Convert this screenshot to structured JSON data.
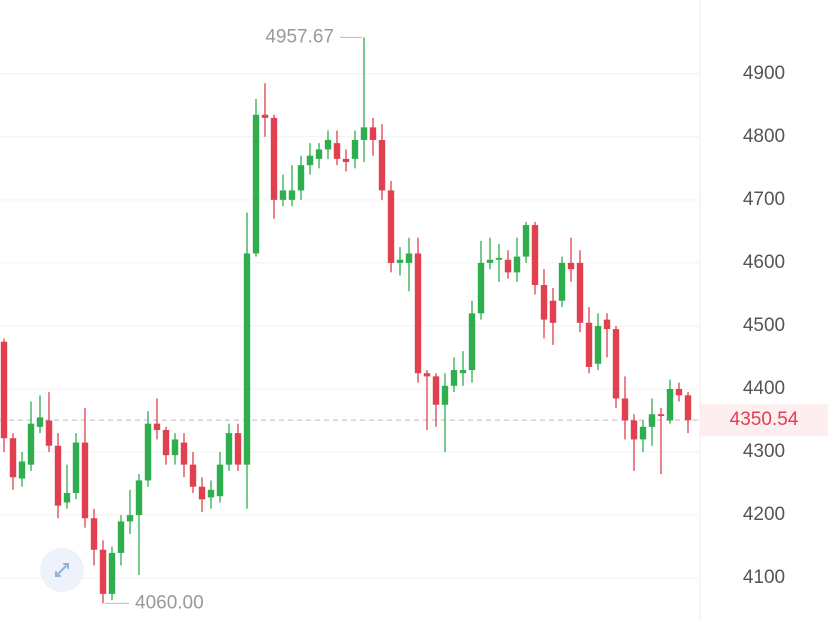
{
  "chart_data": {
    "type": "candlestick",
    "up_color": "#2fae4e",
    "down_color": "#e0404f",
    "grid": true,
    "ylim": [
      4032,
      5017
    ],
    "yticks": [
      4100,
      4200,
      4300,
      4400,
      4500,
      4600,
      4700,
      4800,
      4900
    ],
    "open": [
      4475,
      4322,
      4258,
      4280,
      4340,
      4350,
      4310,
      4220,
      4235,
      4315,
      4195,
      4145,
      4075,
      4140,
      4190,
      4200,
      4255,
      4345,
      4335,
      4295,
      4315,
      4280,
      4245,
      4228,
      4230,
      4280,
      4330,
      4280,
      4615,
      4835,
      4830,
      4700,
      4700,
      4715,
      4755,
      4765,
      4780,
      4790,
      4765,
      4765,
      4795,
      4815,
      4795,
      4715,
      4600,
      4600,
      4615,
      4425,
      4420,
      4375,
      4405,
      4425,
      4430,
      4520,
      4600,
      4605,
      4605,
      4585,
      4610,
      4660,
      4565,
      4540,
      4540,
      4600,
      4600,
      4505,
      4440,
      4510,
      4495,
      4385,
      4350,
      4320,
      4340,
      4360,
      4350,
      4400,
      4390
    ],
    "high": [
      4480,
      4330,
      4300,
      4380,
      4390,
      4395,
      4330,
      4280,
      4330,
      4370,
      4210,
      4160,
      4150,
      4200,
      4240,
      4265,
      4365,
      4385,
      4340,
      4330,
      4330,
      4300,
      4260,
      4255,
      4300,
      4345,
      4345,
      4680,
      4860,
      4885,
      4835,
      4740,
      4755,
      4770,
      4790,
      4790,
      4810,
      4810,
      4780,
      4810,
      4957.67,
      4830,
      4820,
      4730,
      4625,
      4640,
      4640,
      4430,
      4425,
      4425,
      4450,
      4460,
      4540,
      4635,
      4640,
      4630,
      4620,
      4640,
      4665,
      4665,
      4590,
      4560,
      4610,
      4640,
      4620,
      4530,
      4520,
      4520,
      4500,
      4420,
      4360,
      4350,
      4385,
      4370,
      4415,
      4410,
      4395
    ],
    "low": [
      4300,
      4240,
      4245,
      4270,
      4330,
      4300,
      4195,
      4210,
      4225,
      4180,
      4120,
      4060,
      4065,
      4120,
      4170,
      4105,
      4245,
      4320,
      4280,
      4280,
      4260,
      4235,
      4205,
      4210,
      4220,
      4270,
      4270,
      4210,
      4610,
      4800,
      4670,
      4690,
      4690,
      4700,
      4740,
      4750,
      4765,
      4755,
      4745,
      4750,
      4760,
      4770,
      4700,
      4585,
      4580,
      4555,
      4410,
      4335,
      4340,
      4300,
      4395,
      4405,
      4410,
      4510,
      4590,
      4570,
      4575,
      4570,
      4600,
      4550,
      4480,
      4470,
      4530,
      4570,
      4490,
      4425,
      4430,
      4450,
      4370,
      4320,
      4270,
      4300,
      4310,
      4265,
      4345,
      4380,
      4330
    ],
    "close": [
      4322,
      4260,
      4285,
      4345,
      4355,
      4310,
      4215,
      4235,
      4315,
      4195,
      4145,
      4075,
      4140,
      4190,
      4200,
      4255,
      4345,
      4335,
      4295,
      4320,
      4280,
      4245,
      4225,
      4240,
      4280,
      4330,
      4280,
      4615,
      4835,
      4830,
      4700,
      4715,
      4715,
      4755,
      4770,
      4780,
      4795,
      4765,
      4760,
      4795,
      4815,
      4795,
      4715,
      4600,
      4605,
      4615,
      4425,
      4420,
      4375,
      4405,
      4430,
      4430,
      4520,
      4600,
      4605,
      4608,
      4585,
      4610,
      4660,
      4565,
      4510,
      4505,
      4600,
      4590,
      4505,
      4435,
      4500,
      4495,
      4385,
      4350,
      4320,
      4340,
      4360,
      4357,
      4400,
      4390,
      4350.54
    ],
    "max_label": {
      "value": 4957.67,
      "label": "4957.67"
    },
    "min_label": {
      "value": 4060,
      "label": "4060.00"
    },
    "last_price": {
      "value": 4350.54,
      "label": "4350.54"
    }
  }
}
